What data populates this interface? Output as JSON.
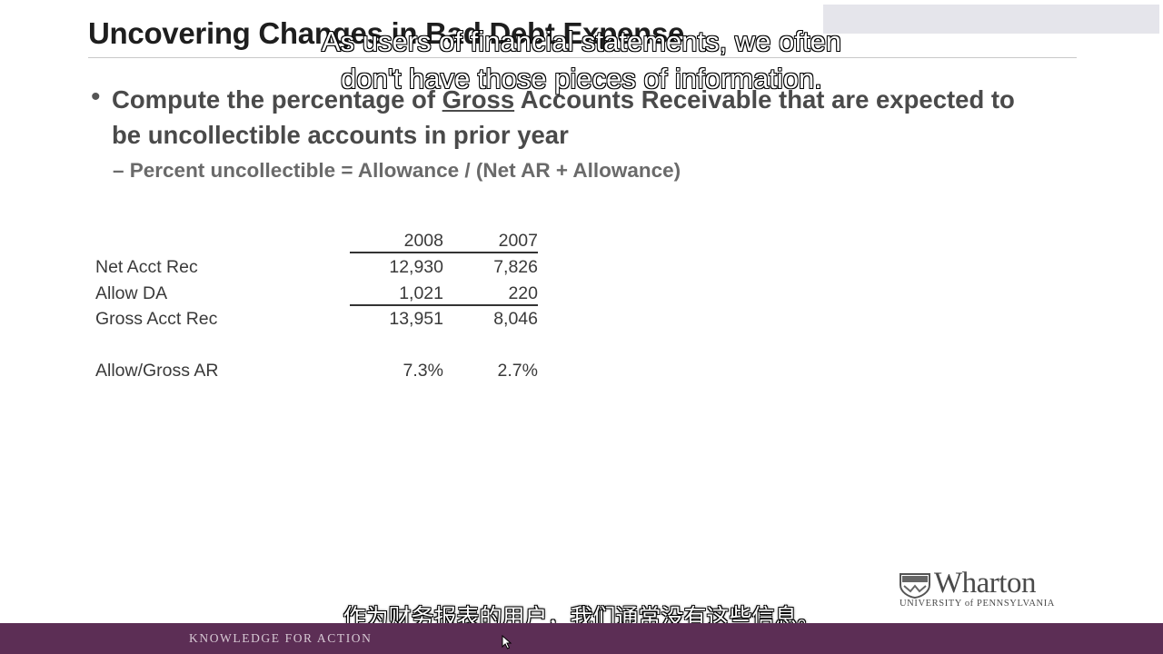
{
  "slide": {
    "title": "Uncovering Changes in Bad Debt Expense",
    "bullet": {
      "text_before": "Compute the percentage of ",
      "underlined": "Gross",
      "text_after": " Accounts Receivable that are expected to be uncollectible accounts in prior year"
    },
    "subbullet": "– Percent uncollectible = Allowance / (Net AR + Allowance)"
  },
  "table": {
    "columns": [
      "2008",
      "2007"
    ],
    "rows": [
      {
        "label": "Net Acct Rec",
        "values": [
          "12,930",
          "7,826"
        ]
      },
      {
        "label": "Allow DA",
        "values": [
          "1,021",
          "220"
        ]
      },
      {
        "label": "Gross Acct Rec",
        "values": [
          "13,951",
          "8,046"
        ]
      },
      {
        "label": "Allow/Gross AR",
        "values": [
          "7.3%",
          "2.7%"
        ]
      }
    ]
  },
  "subtitles": {
    "english_line1": "As users of financial statements, we often",
    "english_line2": "don't have those pieces of information.",
    "chinese": "作为财务报表的用户，我们通常没有这些信息。"
  },
  "logo": {
    "wordmark": "Wharton",
    "subline": "UNIVERSITY of PENNSYLVANIA"
  },
  "footer": {
    "tagline": "KNOWLEDGE FOR ACTION"
  },
  "colors": {
    "footer_bar": "#5c2e55",
    "title_text": "#1e1e1e",
    "bullet_text": "#4a4a4a"
  }
}
